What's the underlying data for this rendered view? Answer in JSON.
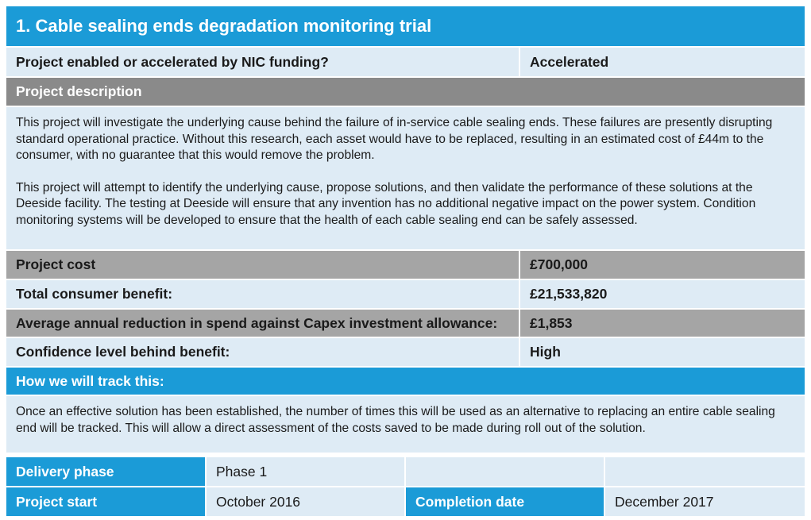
{
  "title": "1. Cable sealing ends degradation monitoring trial",
  "funding": {
    "label": "Project enabled or accelerated by NIC funding?",
    "value": "Accelerated"
  },
  "description": {
    "heading": "Project description",
    "paragraphs": [
      "This project will investigate the underlying cause behind the failure of in-service cable sealing ends. These failures are presently disrupting standard operational practice. Without this research, each asset would have to be replaced, resulting in an estimated cost of £44m to the consumer, with no guarantee that this would remove the problem.",
      "This project will attempt to identify the underlying cause, propose solutions, and then validate the performance of these solutions at the Deeside facility. The testing at Deeside will ensure that any invention has no additional negative impact on the power system. Condition monitoring systems will be developed to ensure that the health of each cable sealing end can be safely assessed."
    ]
  },
  "metrics": [
    {
      "label": "Project cost",
      "value": "£700,000"
    },
    {
      "label": "Total consumer benefit:",
      "value": "£21,533,820"
    },
    {
      "label": "Average annual reduction in spend against Capex investment allowance:",
      "value": "£1,853"
    },
    {
      "label": "Confidence level behind benefit:",
      "value": "High"
    }
  ],
  "tracking": {
    "heading": "How we will track this:",
    "text": "Once an effective solution has been established, the number of times this will be used as an alternative to replacing an entire cable sealing end will be tracked. This will allow a direct assessment of the costs saved to be made during roll out of the solution."
  },
  "schedule": {
    "delivery_phase": {
      "label": "Delivery phase",
      "value": "Phase 1"
    },
    "project_start": {
      "label": "Project start",
      "value": "October 2016"
    },
    "completion_date": {
      "label": "Completion date",
      "value": "December 2017"
    }
  }
}
